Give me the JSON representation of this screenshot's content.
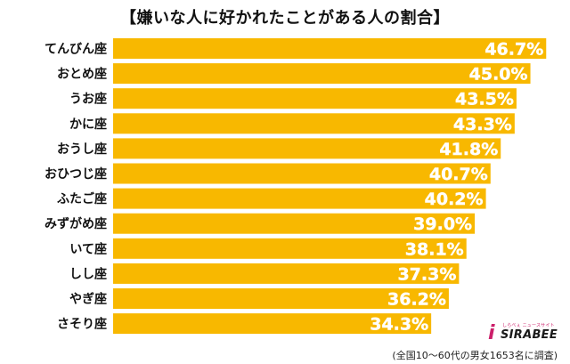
{
  "chart_data": {
    "type": "bar",
    "orientation": "horizontal",
    "title": "【嫌いな人に好かれたことがある人の割合】",
    "categories": [
      "てんびん座",
      "おとめ座",
      "うお座",
      "かに座",
      "おうし座",
      "おひつじ座",
      "ふたご座",
      "みずがめ座",
      "いて座",
      "しし座",
      "やぎ座",
      "さそり座"
    ],
    "values": [
      46.7,
      45.0,
      43.5,
      43.3,
      41.8,
      40.7,
      40.2,
      39.0,
      38.1,
      37.3,
      36.2,
      34.3
    ],
    "value_labels": [
      "46.7%",
      "45.0%",
      "43.5%",
      "43.3%",
      "41.8%",
      "40.7%",
      "40.2%",
      "39.0%",
      "38.1%",
      "37.3%",
      "36.2%",
      "34.3%"
    ],
    "xlim": [
      0,
      48.5
    ],
    "grid": false,
    "legend": "none",
    "bar_color": "#F8B800",
    "label_color": "#ffffff"
  },
  "footer": {
    "note": "(全国10〜60代の男女1653名に調査)"
  },
  "logo": {
    "tagline": "しらべぇ ニュースサイト",
    "wordmark": "SIRABEE",
    "mark": "i"
  }
}
